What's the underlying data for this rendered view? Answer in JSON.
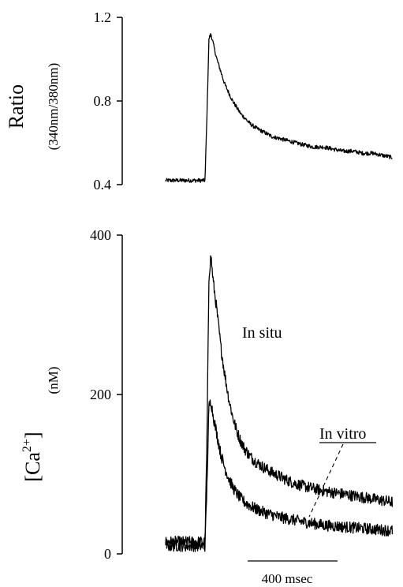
{
  "chart_data": [
    {
      "type": "line",
      "ylabel": "Ratio",
      "ylabel_sub": "(340nm/380nm)",
      "ylim": [
        0.4,
        1.2
      ],
      "yticks": [
        "0.4",
        "0.8",
        "1.2"
      ],
      "ytick_values": [
        0.4,
        0.8,
        1.2
      ],
      "xlabel": "",
      "xlim": [
        0,
        1200
      ],
      "grid": false,
      "series": [
        {
          "name": "",
          "x": [
            0,
            20,
            40,
            60,
            80,
            100,
            120,
            140,
            160,
            180,
            200,
            210,
            220,
            230,
            240,
            250,
            260,
            270,
            280,
            290,
            300,
            320,
            340,
            360,
            380,
            400,
            430,
            460,
            500,
            540,
            580,
            620,
            660,
            700,
            750,
            800,
            850,
            900,
            950,
            1000,
            1050,
            1100,
            1150
          ],
          "y": [
            0.42,
            0.42,
            0.42,
            0.42,
            0.42,
            0.42,
            0.42,
            0.42,
            0.42,
            0.42,
            0.42,
            0.75,
            1.1,
            1.12,
            1.08,
            1.04,
            1.0,
            0.97,
            0.94,
            0.91,
            0.88,
            0.84,
            0.8,
            0.77,
            0.74,
            0.72,
            0.69,
            0.67,
            0.65,
            0.63,
            0.62,
            0.61,
            0.6,
            0.59,
            0.58,
            0.58,
            0.57,
            0.56,
            0.56,
            0.55,
            0.55,
            0.54,
            0.53
          ]
        }
      ]
    },
    {
      "type": "line",
      "ylabel": "[Ca2+]",
      "ylabel_base": "[Ca",
      "ylabel_sup": "2+",
      "ylabel_close": "]",
      "yunit": "(nM)",
      "ylim": [
        0,
        400
      ],
      "yticks": [
        "0",
        "200",
        "400"
      ],
      "ytick_values": [
        0,
        200,
        400
      ],
      "xlabel": "",
      "xlim": [
        0,
        1200
      ],
      "grid": false,
      "scale_bar": {
        "label": "400 msec",
        "duration": 400,
        "from": 400
      },
      "annotations": [
        "In situ",
        "In vitro"
      ],
      "series": [
        {
          "name": "In situ",
          "x": [
            0,
            40,
            80,
            120,
            160,
            200,
            210,
            220,
            230,
            240,
            260,
            280,
            300,
            320,
            340,
            360,
            380,
            400,
            430,
            460,
            500,
            540,
            580,
            620,
            660,
            700,
            750,
            800,
            850,
            900,
            950,
            1000,
            1050,
            1100,
            1150
          ],
          "y": [
            15,
            15,
            15,
            15,
            15,
            15,
            150,
            350,
            375,
            345,
            305,
            260,
            225,
            195,
            172,
            155,
            142,
            132,
            122,
            115,
            108,
            102,
            97,
            92,
            88,
            85,
            82,
            79,
            77,
            75,
            73,
            71,
            69,
            67,
            65
          ]
        },
        {
          "name": "In vitro",
          "x": [
            0,
            40,
            80,
            120,
            160,
            200,
            210,
            220,
            230,
            240,
            260,
            280,
            300,
            320,
            340,
            360,
            380,
            400,
            430,
            460,
            500,
            540,
            580,
            620,
            660,
            700,
            750,
            800,
            850,
            900,
            950,
            1000,
            1050,
            1100,
            1150
          ],
          "y": [
            10,
            10,
            10,
            10,
            10,
            10,
            90,
            185,
            192,
            175,
            150,
            125,
            108,
            95,
            84,
            76,
            70,
            65,
            60,
            56,
            52,
            49,
            46,
            44,
            42,
            40,
            38,
            36,
            35,
            34,
            33,
            32,
            31,
            30,
            29
          ]
        }
      ]
    }
  ]
}
